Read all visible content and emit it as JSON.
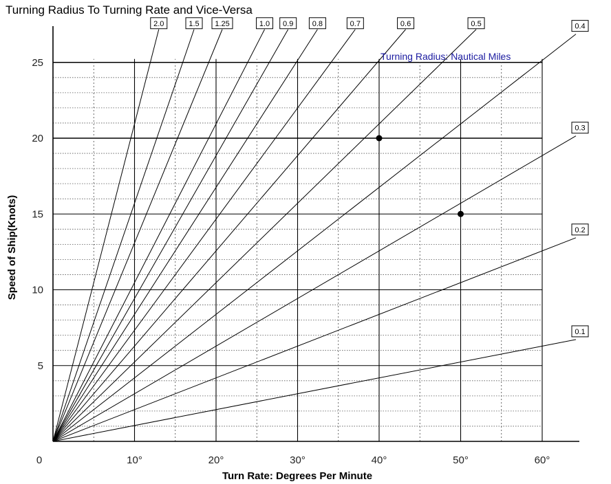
{
  "chart_data": {
    "type": "line",
    "title": "Turning Radius To Turning Rate and Vice-Versa",
    "xlabel": "Turn Rate: Degrees Per Minute",
    "ylabel": "Speed of Ship(Knots)",
    "annotation": "Turning Radius: Nautical Miles",
    "xlim": [
      0,
      65
    ],
    "ylim": [
      0,
      25
    ],
    "x_ticks": [
      {
        "value": 0,
        "label": "0"
      },
      {
        "value": 10,
        "label": "10°"
      },
      {
        "value": 20,
        "label": "20°"
      },
      {
        "value": 30,
        "label": "30°"
      },
      {
        "value": 40,
        "label": "40°"
      },
      {
        "value": 50,
        "label": "50°"
      },
      {
        "value": 60,
        "label": "60°"
      }
    ],
    "y_ticks": [
      {
        "value": 5,
        "label": "5"
      },
      {
        "value": 10,
        "label": "10"
      },
      {
        "value": 15,
        "label": "15"
      },
      {
        "value": 20,
        "label": "20"
      },
      {
        "value": 25,
        "label": "25"
      }
    ],
    "grid": true,
    "series": [
      {
        "name": "2.0",
        "radius": 2.0
      },
      {
        "name": "1.5",
        "radius": 1.5
      },
      {
        "name": "1.25",
        "radius": 1.25
      },
      {
        "name": "1.0",
        "radius": 1.0
      },
      {
        "name": "0.9",
        "radius": 0.9
      },
      {
        "name": "0.8",
        "radius": 0.8
      },
      {
        "name": "0.7",
        "radius": 0.7
      },
      {
        "name": "0.6",
        "radius": 0.6
      },
      {
        "name": "0.5",
        "radius": 0.5
      },
      {
        "name": "0.4",
        "radius": 0.4
      },
      {
        "name": "0.3",
        "radius": 0.3
      },
      {
        "name": "0.2",
        "radius": 0.2
      },
      {
        "name": "0.1",
        "radius": 0.1
      }
    ],
    "points": [
      {
        "x": 40,
        "y": 20
      },
      {
        "x": 50,
        "y": 15
      }
    ]
  }
}
